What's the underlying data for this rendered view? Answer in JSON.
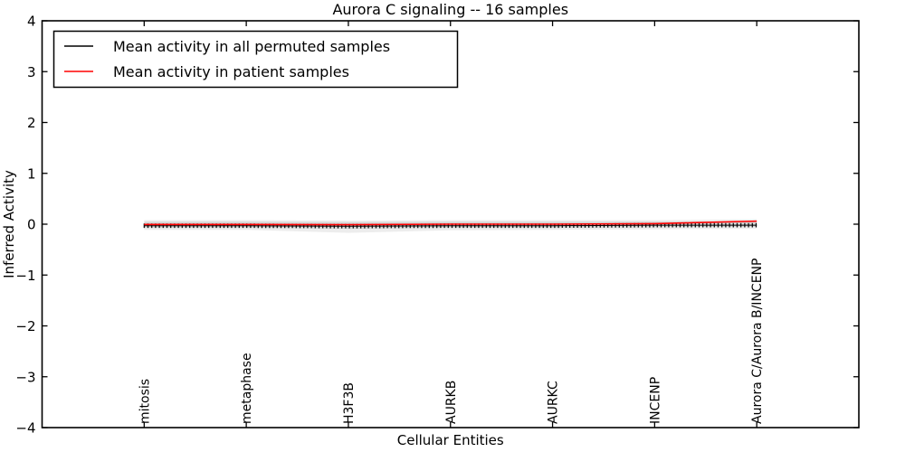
{
  "figure": {
    "title": "Aurora C signaling -- 16 samples",
    "xlabel": "Cellular Entities",
    "ylabel": "Inferred Activity"
  },
  "legend": {
    "items": [
      {
        "label": "Mean activity in all permuted samples",
        "color": "#000000"
      },
      {
        "label": "Mean activity in patient samples",
        "color": "#ff0000"
      }
    ]
  },
  "chart_data": {
    "type": "line",
    "title": "Aurora C signaling -- 16 samples",
    "xlabel": "Cellular Entities",
    "ylabel": "Inferred Activity",
    "ylim": [
      -4,
      4
    ],
    "ytick_values": [
      -4,
      -3,
      -2,
      -1,
      0,
      1,
      2,
      3,
      4
    ],
    "ytick_labels": [
      "−4",
      "−3",
      "−2",
      "−1",
      "0",
      "1",
      "2",
      "3",
      "4"
    ],
    "categories": [
      "mitosis",
      "metaphase",
      "H3F3B",
      "AURKB",
      "AURKC",
      "INCENP",
      "Aurora C/Aurora B/INCENP"
    ],
    "series": [
      {
        "name": "Mean activity in all permuted samples",
        "color": "#000000",
        "marker": "vertical-tick",
        "values": [
          -0.03,
          -0.03,
          -0.04,
          -0.03,
          -0.03,
          -0.02,
          -0.02
        ]
      },
      {
        "name": "Mean activity in patient samples",
        "color": "#ff0000",
        "marker": "none",
        "values": [
          -0.005,
          -0.005,
          -0.01,
          0.0,
          0.0,
          0.01,
          0.06
        ]
      }
    ],
    "bands": [
      {
        "name": "permuted-samples-outer-band",
        "color": "rgba(0,0,0,0.07)",
        "upper": [
          0.08,
          0.08,
          0.07,
          0.08,
          0.08,
          0.08,
          0.1
        ],
        "lower": [
          -0.11,
          -0.11,
          -0.17,
          -0.12,
          -0.11,
          -0.1,
          -0.09
        ]
      },
      {
        "name": "permuted-samples-inner-band",
        "color": "rgba(0,0,0,0.10)",
        "upper": [
          0.05,
          0.05,
          0.04,
          0.05,
          0.05,
          0.05,
          0.06
        ],
        "lower": [
          -0.07,
          -0.07,
          -0.09,
          -0.07,
          -0.07,
          -0.06,
          -0.05
        ]
      }
    ],
    "legend_position": "upper-left",
    "grid": false
  }
}
